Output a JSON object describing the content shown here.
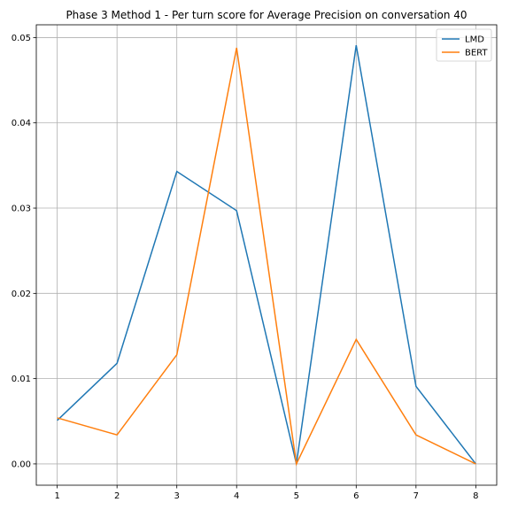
{
  "chart_data": {
    "type": "line",
    "title": "Phase 3 Method 1 - Per turn score for Average Precision on conversation 40",
    "xlabel": "",
    "ylabel": "",
    "x": [
      1,
      2,
      3,
      4,
      5,
      6,
      7,
      8
    ],
    "xlim": [
      0.65,
      8.35
    ],
    "ylim": [
      -0.0025,
      0.0515
    ],
    "x_ticks": [
      "1",
      "2",
      "3",
      "4",
      "5",
      "6",
      "7",
      "8"
    ],
    "y_ticks": [
      0.0,
      0.01,
      0.02,
      0.03,
      0.04,
      0.05
    ],
    "y_tick_labels": [
      "0.00",
      "0.01",
      "0.02",
      "0.03",
      "0.04",
      "0.05"
    ],
    "grid": true,
    "legend_position": "top-right",
    "series": [
      {
        "name": "LMD",
        "color": "#1f77b4",
        "values": [
          0.0051,
          0.0118,
          0.0343,
          0.0297,
          0.0,
          0.0491,
          0.0091,
          0.0
        ]
      },
      {
        "name": "BERT",
        "color": "#ff7f0e",
        "values": [
          0.0054,
          0.0034,
          0.0128,
          0.0488,
          0.0,
          0.0146,
          0.0034,
          0.0
        ]
      }
    ]
  }
}
